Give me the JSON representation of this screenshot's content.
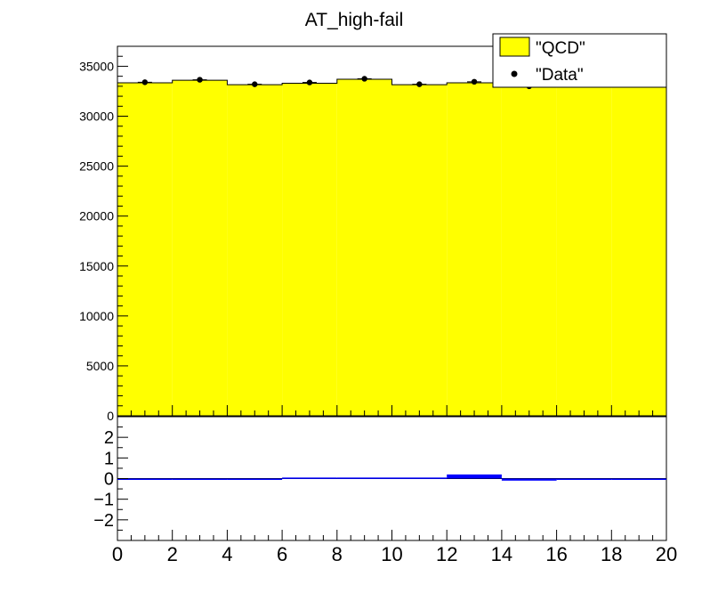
{
  "title": "AT_high-fail",
  "legend": {
    "position": "top-right",
    "entries": [
      {
        "label": "\"QCD\"",
        "kind": "fill",
        "color": "#ffff00"
      },
      {
        "label": "\"Data\"",
        "kind": "marker",
        "color": "#000000"
      }
    ]
  },
  "colors": {
    "qcd_fill": "#ffff00",
    "data_marker": "#000000",
    "ratio_band": "#0000ff",
    "axis": "#000000"
  },
  "chart_data": [
    {
      "type": "bar",
      "panel": "main",
      "title": "AT_high-fail",
      "xlim": [
        0,
        20
      ],
      "ylim": [
        0,
        37000
      ],
      "y_ticks": [
        0,
        5000,
        10000,
        15000,
        20000,
        25000,
        30000,
        35000
      ],
      "y_tick_labels": [
        "0",
        "5000",
        "10000",
        "15000",
        "20000",
        "25000",
        "30000",
        "35000"
      ],
      "bin_edges": [
        0,
        2,
        4,
        6,
        8,
        10,
        12,
        14,
        16,
        18,
        20
      ],
      "series": [
        {
          "name": "\"QCD\"",
          "style": "filled-histogram",
          "values": [
            33350,
            33600,
            33150,
            33300,
            33700,
            33150,
            33350,
            33050,
            33150,
            33100
          ]
        },
        {
          "name": "\"Data\"",
          "style": "points",
          "x": [
            1,
            3,
            5,
            7,
            9,
            11,
            13,
            15,
            17,
            19
          ],
          "values": [
            33400,
            33650,
            33200,
            33380,
            33750,
            33200,
            33450,
            33000,
            33280,
            33220
          ]
        }
      ]
    },
    {
      "type": "bar",
      "panel": "ratio",
      "xlim": [
        0,
        20
      ],
      "ylim": [
        -3,
        3
      ],
      "y_ticks": [
        -2,
        -1,
        0,
        1,
        2
      ],
      "y_tick_labels": [
        "−2",
        "−1",
        "0",
        "1",
        "2"
      ],
      "x_ticks": [
        0,
        2,
        4,
        6,
        8,
        10,
        12,
        14,
        16,
        18,
        20
      ],
      "x_tick_labels": [
        "0",
        "2",
        "4",
        "6",
        "8",
        "10",
        "12",
        "14",
        "16",
        "18",
        "20"
      ],
      "bin_edges": [
        0,
        2,
        4,
        6,
        8,
        10,
        12,
        14,
        16,
        18,
        20
      ],
      "series": [
        {
          "style": "band",
          "values": [
            0,
            -0.05,
            0,
            0.05,
            0.05,
            0.05,
            0.2,
            -0.1,
            -0.05,
            0
          ]
        }
      ]
    }
  ]
}
